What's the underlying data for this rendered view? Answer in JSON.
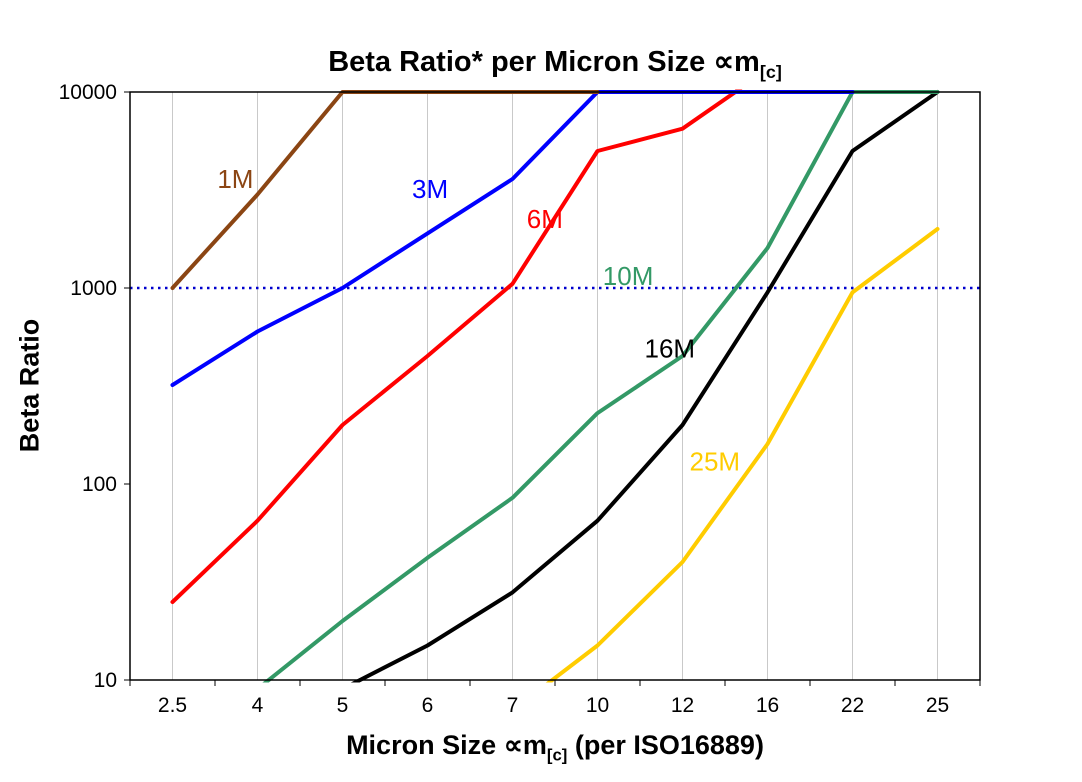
{
  "title": {
    "text": "Beta Ratio* per Micron Size ∝m",
    "subscript": "[c]"
  },
  "axes": {
    "y_label": "Beta Ratio",
    "x_label": {
      "pre": "Micron Size ∝m",
      "subscript": "[c]",
      "post": " (per ISO16889)"
    }
  },
  "chart_data": {
    "type": "line",
    "title": "Beta Ratio* per Micron Size ∝m[c]",
    "xlabel": "Micron Size ∝m[c] (per ISO16889)",
    "ylabel": "Beta Ratio",
    "x_axis": {
      "scale": "category",
      "categories": [
        "2.5",
        "4",
        "5",
        "6",
        "7",
        "10",
        "12",
        "16",
        "22",
        "25"
      ]
    },
    "y_axis": {
      "scale": "log",
      "min": 10,
      "max": 10000,
      "ticks": [
        10,
        100,
        1000,
        10000
      ]
    },
    "grid": {
      "vertical": true,
      "horizontal": false,
      "color": "#c9c9c9"
    },
    "legend": "inline-labels",
    "reference_line": {
      "y": 1000,
      "color": "#0000cd",
      "style": "dotted"
    },
    "draw_order": [
      "25M",
      "16M",
      "10M",
      "6M",
      "3M",
      "1M"
    ],
    "series": [
      {
        "name": "1M",
        "color": "#8b4513",
        "values": [
          1000,
          3000,
          10000,
          10000,
          10000,
          10000,
          null,
          null,
          null,
          null
        ],
        "label": {
          "x": 0.74,
          "y": 3600
        }
      },
      {
        "name": "3M",
        "color": "#0000ff",
        "values": [
          320,
          600,
          1000,
          1900,
          3600,
          10000,
          10000,
          10000,
          10000,
          null
        ],
        "label": {
          "x": 3.03,
          "y": 3200
        }
      },
      {
        "name": "6M",
        "color": "#ff0000",
        "values": [
          25,
          65,
          200,
          450,
          1050,
          5000,
          6500,
          13000,
          null,
          null
        ],
        "label": {
          "x": 4.38,
          "y": 2250
        }
      },
      {
        "name": "10M",
        "color": "#339966",
        "values": [
          null,
          9,
          20,
          42,
          85,
          230,
          450,
          1600,
          10000,
          10000
        ],
        "label": {
          "x": 5.36,
          "y": 1150
        }
      },
      {
        "name": "16M",
        "color": "#000000",
        "values": [
          null,
          null,
          9,
          15,
          28,
          65,
          200,
          950,
          5000,
          10000
        ],
        "label": {
          "x": 5.85,
          "y": 490
        }
      },
      {
        "name": "25M",
        "color": "#ffcc00",
        "values": [
          null,
          null,
          null,
          null,
          7,
          15,
          40,
          160,
          950,
          2000
        ],
        "label": {
          "x": 6.38,
          "y": 130
        }
      }
    ]
  }
}
